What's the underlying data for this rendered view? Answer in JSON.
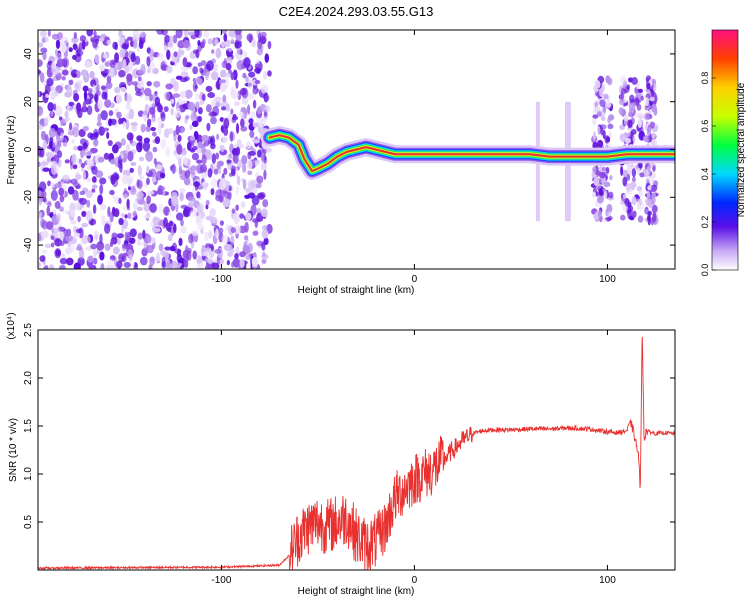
{
  "figure_title": "C2E4.2024.293.03.55.G13",
  "colors": {
    "snr_line": "#e8312f",
    "ridge_core": "#e83030",
    "noise_dark": "#6a1bd8",
    "noise_light": "#c9a8f0"
  },
  "chart_data": [
    {
      "type": "heatmap",
      "title": "C2E4.2024.293.03.55.G13",
      "xlabel": "Height of straight line (km)",
      "ylabel": "Frequency (Hz)",
      "xlim": [
        -195,
        135
      ],
      "ylim": [
        -50,
        50
      ],
      "x_ticks": [
        {
          "v": -100,
          "label": "-100"
        },
        {
          "v": 0,
          "label": "0"
        },
        {
          "v": 100,
          "label": "100"
        }
      ],
      "y_ticks": [
        {
          "v": -40,
          "label": "-40"
        },
        {
          "v": -20,
          "label": "-20"
        },
        {
          "v": 0,
          "label": "0"
        },
        {
          "v": 20,
          "label": "20"
        },
        {
          "v": 40,
          "label": "40"
        }
      ],
      "colorbar": {
        "label": "Normalized spectral amplitude",
        "range": [
          0,
          1
        ],
        "ticks": [
          {
            "v": 0.0,
            "label": "0.0"
          },
          {
            "v": 0.2,
            "label": "0.2"
          },
          {
            "v": 0.4,
            "label": "0.4"
          },
          {
            "v": 0.6,
            "label": "0.6"
          },
          {
            "v": 0.8,
            "label": "0.8"
          }
        ]
      },
      "noise_region_km": [
        -195,
        -75
      ],
      "noise_bursts_km": [
        [
          93,
          102
        ],
        [
          107,
          118
        ],
        [
          120,
          125
        ]
      ],
      "ridge": [
        [
          -75,
          5
        ],
        [
          -70,
          6
        ],
        [
          -65,
          5
        ],
        [
          -60,
          2
        ],
        [
          -57,
          -4
        ],
        [
          -53,
          -9
        ],
        [
          -50,
          -8
        ],
        [
          -45,
          -6
        ],
        [
          -40,
          -3
        ],
        [
          -35,
          -1
        ],
        [
          -30,
          0
        ],
        [
          -25,
          1
        ],
        [
          -20,
          0
        ],
        [
          -15,
          -1
        ],
        [
          -10,
          -2
        ],
        [
          -5,
          -2
        ],
        [
          0,
          -2
        ],
        [
          20,
          -2
        ],
        [
          40,
          -2
        ],
        [
          60,
          -2
        ],
        [
          70,
          -3
        ],
        [
          80,
          -3
        ],
        [
          90,
          -3
        ],
        [
          95,
          -3
        ],
        [
          100,
          -3
        ],
        [
          110,
          -2
        ],
        [
          125,
          -2
        ],
        [
          135,
          -2
        ]
      ]
    },
    {
      "type": "line",
      "xlabel": "Height of straight line (km)",
      "ylabel": "SNR (10 * v/v)",
      "yscale_label": "(x10⁴)",
      "xlim": [
        -195,
        135
      ],
      "ylim": [
        0,
        2.5
      ],
      "x_ticks": [
        {
          "v": -100,
          "label": "-100"
        },
        {
          "v": 0,
          "label": "0"
        },
        {
          "v": 100,
          "label": "100"
        }
      ],
      "y_ticks": [
        {
          "v": 0.5,
          "label": "0.5"
        },
        {
          "v": 1.0,
          "label": "1.0"
        },
        {
          "v": 1.5,
          "label": "1.5"
        },
        {
          "v": 2.0,
          "label": "2.0"
        },
        {
          "v": 2.5,
          "label": "2.5"
        }
      ],
      "series": [
        {
          "x": [
            -195,
            -100,
            -70,
            -65,
            -60,
            -55,
            -50,
            -45,
            -40,
            -35,
            -30,
            -25,
            -20,
            -15,
            -10,
            -5,
            0,
            5,
            10,
            15,
            20,
            25,
            30,
            35,
            40,
            50,
            60,
            70,
            80,
            90,
            100,
            105,
            110,
            112,
            114,
            116,
            117,
            118,
            119,
            120,
            125,
            130,
            135
          ],
          "y": [
            0.02,
            0.03,
            0.05,
            0.15,
            0.35,
            0.45,
            0.5,
            0.45,
            0.5,
            0.55,
            0.35,
            0.25,
            0.3,
            0.45,
            0.75,
            0.85,
            0.95,
            1.0,
            1.05,
            1.15,
            1.25,
            1.35,
            1.42,
            1.45,
            1.46,
            1.46,
            1.47,
            1.47,
            1.48,
            1.47,
            1.44,
            1.43,
            1.45,
            1.55,
            1.4,
            1.2,
            0.85,
            2.5,
            1.35,
            1.45,
            1.42,
            1.43,
            1.42
          ]
        }
      ]
    }
  ]
}
